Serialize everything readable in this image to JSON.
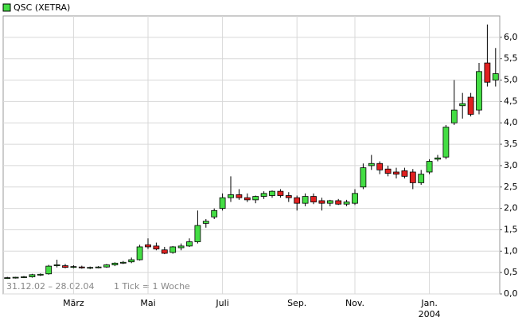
{
  "chart_data": {
    "type": "candlestick",
    "title": "QSC (XETRA)",
    "categories": [
      null,
      null,
      null,
      null,
      null,
      null,
      null,
      null,
      "März",
      null,
      null,
      null,
      null,
      null,
      null,
      null,
      null,
      "Mai",
      null,
      null,
      null,
      null,
      null,
      null,
      null,
      null,
      "Juli",
      null,
      null,
      null,
      null,
      null,
      null,
      null,
      null,
      "Sep.",
      null,
      null,
      null,
      null,
      null,
      null,
      "Nov.",
      null,
      null,
      null,
      null,
      null,
      null,
      null,
      null,
      "Jan.",
      null,
      null,
      null,
      null,
      null,
      null,
      null,
      null
    ],
    "year_label": "2004",
    "open": [
      0.37,
      0.38,
      0.39,
      0.4,
      0.44,
      0.47,
      0.66,
      0.66,
      0.62,
      0.63,
      0.61,
      0.62,
      0.63,
      0.68,
      0.72,
      0.75,
      0.8,
      1.15,
      1.12,
      1.03,
      0.97,
      1.08,
      1.12,
      1.22,
      1.65,
      1.8,
      2.0,
      2.25,
      2.32,
      2.25,
      2.2,
      2.28,
      2.3,
      2.4,
      2.3,
      2.25,
      2.12,
      2.28,
      2.18,
      2.12,
      2.18,
      2.1,
      2.12,
      2.5,
      3.0,
      3.05,
      2.92,
      2.85,
      2.88,
      2.85,
      2.6,
      2.85,
      3.15,
      3.2,
      4.0,
      4.4,
      4.6,
      4.3,
      5.4,
      5.0
    ],
    "high": [
      0.4,
      0.4,
      0.42,
      0.47,
      0.48,
      0.68,
      0.8,
      0.7,
      0.67,
      0.66,
      0.64,
      0.65,
      0.7,
      0.74,
      0.77,
      0.85,
      1.15,
      1.3,
      1.2,
      1.1,
      1.12,
      1.18,
      1.3,
      1.95,
      1.75,
      2.0,
      2.35,
      2.75,
      2.45,
      2.35,
      2.3,
      2.4,
      2.42,
      2.45,
      2.38,
      2.3,
      2.35,
      2.35,
      2.25,
      2.2,
      2.22,
      2.2,
      2.45,
      3.05,
      3.25,
      3.1,
      3.0,
      2.95,
      2.95,
      2.92,
      2.9,
      3.15,
      3.25,
      3.95,
      5.0,
      4.7,
      4.7,
      5.4,
      6.3,
      5.75
    ],
    "low": [
      0.35,
      0.36,
      0.37,
      0.38,
      0.42,
      0.45,
      0.62,
      0.6,
      0.6,
      0.59,
      0.58,
      0.6,
      0.61,
      0.65,
      0.7,
      0.72,
      0.78,
      1.05,
      1.02,
      0.93,
      0.94,
      1.02,
      1.1,
      1.18,
      1.55,
      1.75,
      1.95,
      2.15,
      2.2,
      2.15,
      2.12,
      2.22,
      2.25,
      2.25,
      2.15,
      1.95,
      2.05,
      2.1,
      1.95,
      2.05,
      2.08,
      2.05,
      2.08,
      2.45,
      2.9,
      2.8,
      2.75,
      2.7,
      2.7,
      2.45,
      2.55,
      2.8,
      3.1,
      3.15,
      3.95,
      4.1,
      4.15,
      4.2,
      4.85,
      4.85
    ],
    "close": [
      0.38,
      0.39,
      0.4,
      0.45,
      0.46,
      0.65,
      0.68,
      0.62,
      0.64,
      0.61,
      0.62,
      0.63,
      0.68,
      0.72,
      0.74,
      0.8,
      1.1,
      1.1,
      1.05,
      0.95,
      1.1,
      1.12,
      1.22,
      1.6,
      1.7,
      1.95,
      2.25,
      2.32,
      2.25,
      2.2,
      2.28,
      2.35,
      2.4,
      2.3,
      2.25,
      2.12,
      2.28,
      2.15,
      2.12,
      2.18,
      2.1,
      2.15,
      2.35,
      2.95,
      3.05,
      2.9,
      2.82,
      2.8,
      2.75,
      2.6,
      2.8,
      3.1,
      3.18,
      3.9,
      4.3,
      4.45,
      4.2,
      5.2,
      4.95,
      5.15
    ],
    "up_color": "#44dd44",
    "down_color": "#e02020",
    "ylim": [
      0,
      6.5
    ],
    "yticks": [
      {
        "value": 0,
        "label": "0,0"
      },
      {
        "value": 0.5,
        "label": "0,5"
      },
      {
        "value": 1,
        "label": "1,0"
      },
      {
        "value": 1.5,
        "label": "1,5"
      },
      {
        "value": 2,
        "label": "2,0"
      },
      {
        "value": 2.5,
        "label": "2,5"
      },
      {
        "value": 3,
        "label": "3,0"
      },
      {
        "value": 3.5,
        "label": "3,5"
      },
      {
        "value": 4,
        "label": "4,0"
      },
      {
        "value": 4.5,
        "label": "4,5"
      },
      {
        "value": 5,
        "label": "5,0"
      },
      {
        "value": 5.5,
        "label": "5,5"
      },
      {
        "value": 6,
        "label": "6,0"
      }
    ],
    "grid": true,
    "date_range": "31.12.02 – 28.02.04",
    "tick_note": "1 Tick = 1 Woche"
  }
}
